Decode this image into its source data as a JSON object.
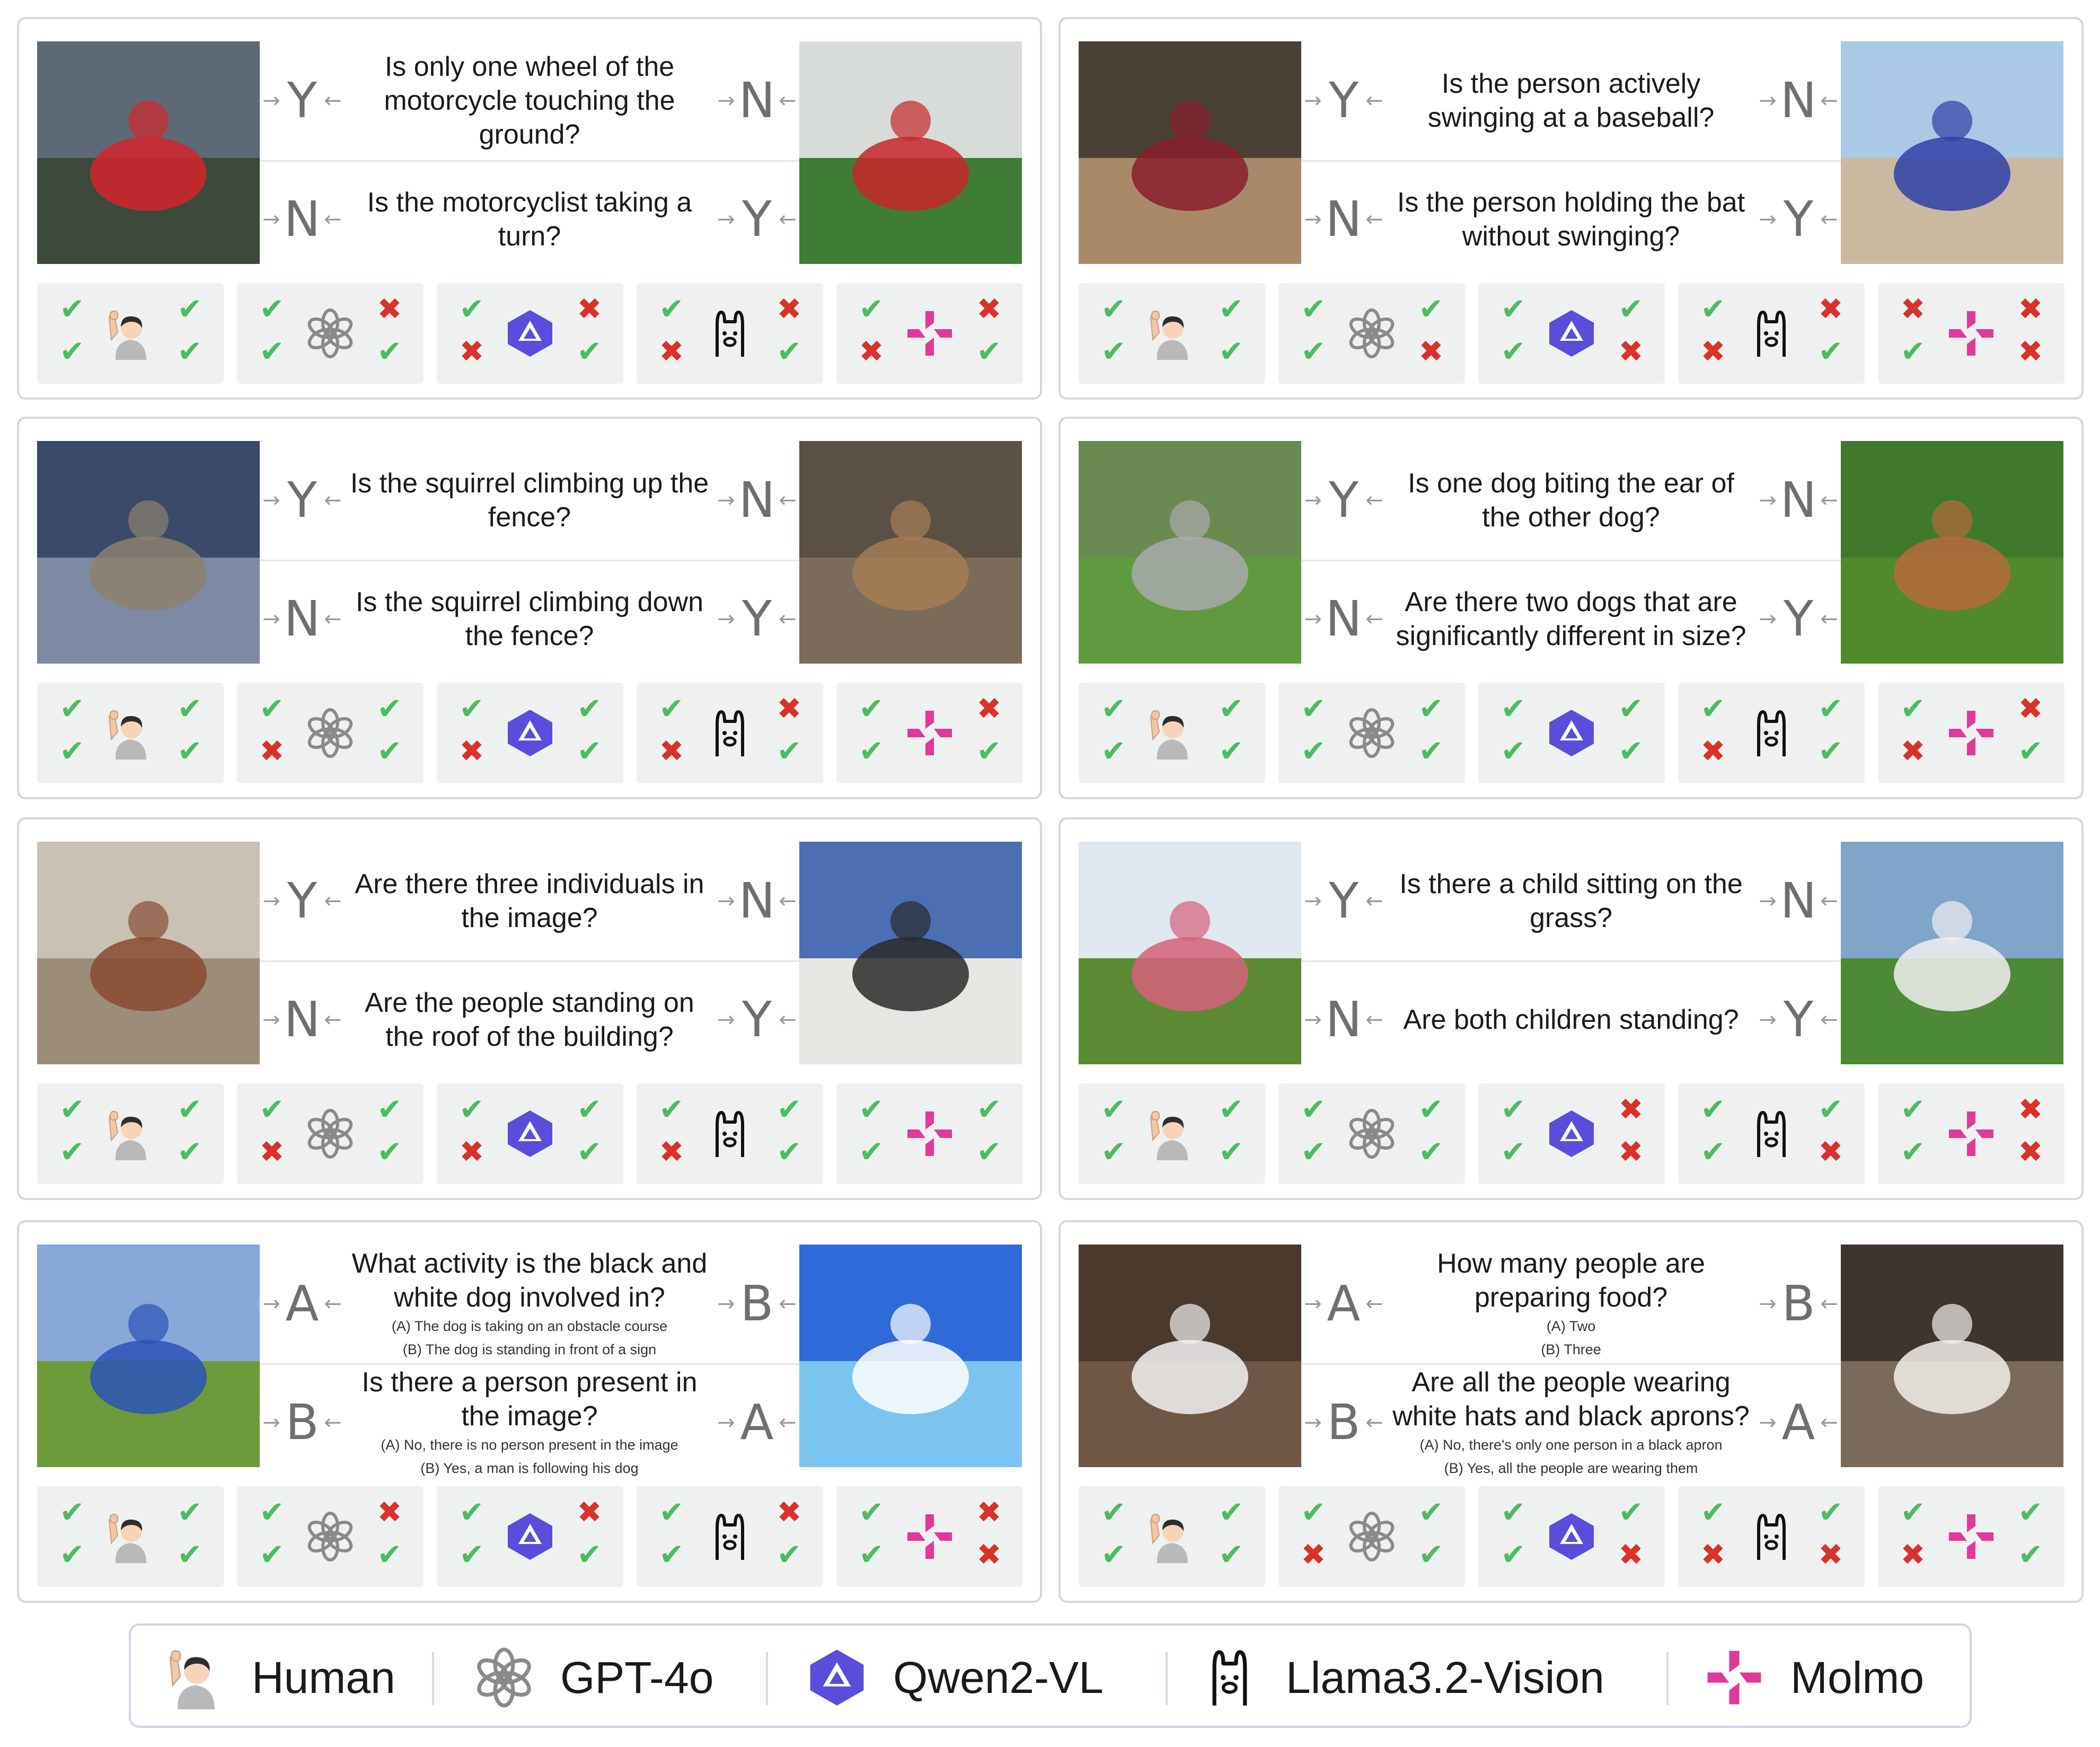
{
  "models": [
    {
      "key": "human",
      "icon": "raised-hand-person-icon",
      "label": "Human"
    },
    {
      "key": "gpt",
      "icon": "openai-logo-icon",
      "label": "GPT-4o"
    },
    {
      "key": "qwen",
      "icon": "qwen-logo-icon",
      "label": "Qwen2-VL"
    },
    {
      "key": "llama",
      "icon": "llama-logo-icon",
      "label": "Llama3.2-Vision"
    },
    {
      "key": "molmo",
      "icon": "molmo-logo-icon",
      "label": "Molmo"
    }
  ],
  "colors": {
    "correct": "#4cbb63",
    "wrong": "#d9312b",
    "qwen": "#5a4ddb",
    "molmo": "#e0399a"
  },
  "panels": [
    {
      "id": "motorcycle",
      "img_left": "motorcyclist wheelie",
      "img_right": "motorcyclist leaning into turn",
      "rows": [
        {
          "left": "Y",
          "right": "N",
          "text": "Is only one wheel of the motorcycle touching the ground?",
          "options": []
        },
        {
          "left": "N",
          "right": "Y",
          "text": "Is the motorcyclist taking a turn?",
          "options": []
        }
      ],
      "results": [
        [
          "Y",
          "Y",
          "Y",
          "Y"
        ],
        [
          "Y",
          "Y",
          "N",
          "Y"
        ],
        [
          "Y",
          "N",
          "N",
          "Y"
        ],
        [
          "Y",
          "N",
          "N",
          "Y"
        ],
        [
          "Y",
          "N",
          "N",
          "Y"
        ]
      ]
    },
    {
      "id": "baseball",
      "img_left": "batter swinging",
      "img_right": "batter holding bat",
      "rows": [
        {
          "left": "Y",
          "right": "N",
          "text": "Is the person actively swinging at a baseball?",
          "options": []
        },
        {
          "left": "N",
          "right": "Y",
          "text": "Is the person holding the bat without swinging?",
          "options": []
        }
      ],
      "results": [
        [
          "Y",
          "Y",
          "Y",
          "Y"
        ],
        [
          "Y",
          "Y",
          "Y",
          "N"
        ],
        [
          "Y",
          "Y",
          "Y",
          "N"
        ],
        [
          "Y",
          "N",
          "N",
          "Y"
        ],
        [
          "N",
          "Y",
          "N",
          "N"
        ]
      ]
    },
    {
      "id": "squirrel",
      "img_left": "squirrel on fence",
      "img_right": "squirrel on wire mesh",
      "rows": [
        {
          "left": "Y",
          "right": "N",
          "text": "Is the squirrel climbing up the fence?",
          "options": []
        },
        {
          "left": "N",
          "right": "Y",
          "text": "Is the squirrel climbing down the fence?",
          "options": []
        }
      ],
      "results": [
        [
          "Y",
          "Y",
          "Y",
          "Y"
        ],
        [
          "Y",
          "N",
          "Y",
          "Y"
        ],
        [
          "Y",
          "N",
          "Y",
          "Y"
        ],
        [
          "Y",
          "N",
          "N",
          "Y"
        ],
        [
          "Y",
          "Y",
          "N",
          "Y"
        ]
      ]
    },
    {
      "id": "dogs",
      "img_left": "two dogs playing",
      "img_right": "big dog and small dog",
      "rows": [
        {
          "left": "Y",
          "right": "N",
          "text": "Is one dog biting the ear of the other dog?",
          "options": []
        },
        {
          "left": "N",
          "right": "Y",
          "text": "Are there two dogs that are significantly different in size?",
          "options": []
        }
      ],
      "results": [
        [
          "Y",
          "Y",
          "Y",
          "Y"
        ],
        [
          "Y",
          "Y",
          "Y",
          "Y"
        ],
        [
          "Y",
          "Y",
          "Y",
          "Y"
        ],
        [
          "Y",
          "N",
          "Y",
          "Y"
        ],
        [
          "Y",
          "N",
          "N",
          "Y"
        ]
      ]
    },
    {
      "id": "roof",
      "img_left": "building with balconies",
      "img_right": "people on rooftop",
      "rows": [
        {
          "left": "Y",
          "right": "N",
          "text": "Are there three individuals in the image?",
          "options": []
        },
        {
          "left": "N",
          "right": "Y",
          "text": "Are the people standing on the roof of the building?",
          "options": []
        }
      ],
      "results": [
        [
          "Y",
          "Y",
          "Y",
          "Y"
        ],
        [
          "Y",
          "N",
          "Y",
          "Y"
        ],
        [
          "Y",
          "N",
          "Y",
          "Y"
        ],
        [
          "Y",
          "N",
          "Y",
          "Y"
        ],
        [
          "Y",
          "Y",
          "Y",
          "Y"
        ]
      ]
    },
    {
      "id": "children",
      "img_left": "child on grass",
      "img_right": "child standing on grass",
      "rows": [
        {
          "left": "Y",
          "right": "N",
          "text": "Is there a child sitting on the grass?",
          "options": []
        },
        {
          "left": "N",
          "right": "Y",
          "text": "Are both children standing?",
          "options": []
        }
      ],
      "results": [
        [
          "Y",
          "Y",
          "Y",
          "Y"
        ],
        [
          "Y",
          "Y",
          "Y",
          "Y"
        ],
        [
          "Y",
          "Y",
          "N",
          "N"
        ],
        [
          "Y",
          "Y",
          "Y",
          "N"
        ],
        [
          "Y",
          "Y",
          "N",
          "N"
        ]
      ]
    },
    {
      "id": "dogactivity",
      "img_left": "dog on obstacle course",
      "img_right": "dog jumping into pool",
      "rows": [
        {
          "left": "A",
          "right": "B",
          "text": "What activity is the black and white dog involved in?",
          "options": [
            "(A) The dog is taking on an obstacle course",
            "(B) The dog is standing in front of a sign"
          ]
        },
        {
          "left": "B",
          "right": "A",
          "text": "Is there a person present in the image?",
          "options": [
            "(A) No, there is no person present in the image",
            "(B) Yes, a man is following his dog"
          ]
        }
      ],
      "results": [
        [
          "Y",
          "Y",
          "Y",
          "Y"
        ],
        [
          "Y",
          "Y",
          "N",
          "Y"
        ],
        [
          "Y",
          "Y",
          "N",
          "Y"
        ],
        [
          "Y",
          "Y",
          "N",
          "Y"
        ],
        [
          "Y",
          "Y",
          "N",
          "N"
        ]
      ]
    },
    {
      "id": "kitchen",
      "img_left": "chefs cooking",
      "img_right": "kitchen workers",
      "rows": [
        {
          "left": "A",
          "right": "B",
          "text": "How many people are preparing food?",
          "options": [
            "(A) Two",
            "(B) Three"
          ]
        },
        {
          "left": "B",
          "right": "A",
          "text": "Are all the people wearing white hats and black aprons?",
          "options": [
            "(A) No, there's only one person in a black apron",
            "(B) Yes, all the people are wearing them"
          ]
        }
      ],
      "results": [
        [
          "Y",
          "Y",
          "Y",
          "Y"
        ],
        [
          "Y",
          "N",
          "Y",
          "Y"
        ],
        [
          "Y",
          "Y",
          "Y",
          "N"
        ],
        [
          "Y",
          "N",
          "Y",
          "N"
        ],
        [
          "Y",
          "N",
          "Y",
          "Y"
        ]
      ]
    }
  ]
}
